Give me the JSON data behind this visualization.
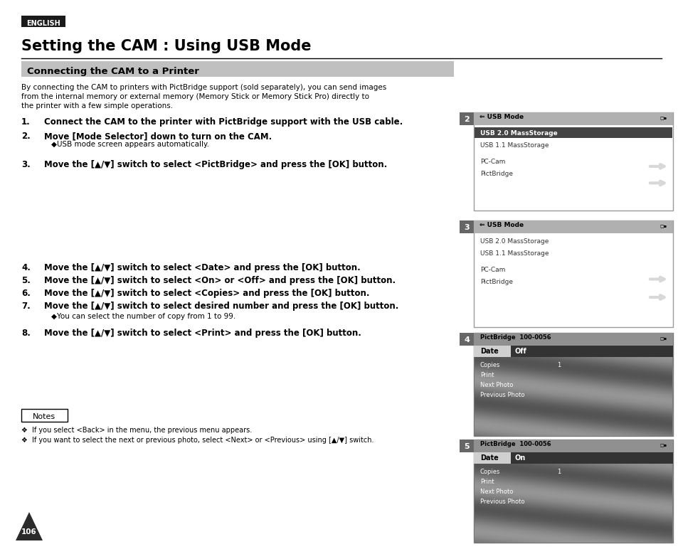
{
  "bg_color": "#ffffff",
  "english_badge": "ENGLISH",
  "main_title": "Setting the CAM : Using USB Mode",
  "section_title": "Connecting the CAM to a Printer",
  "section_bg": "#c0c0c0",
  "intro_text_lines": [
    "By connecting the CAM to printers with PictBridge support (sold separately), you can send images",
    "from the internal memory or external memory (Memory Stick or Memory Stick Pro) directly to",
    "the printer with a few simple operations."
  ],
  "steps": [
    {
      "num": "1.",
      "bold": "Connect the CAM to the printer with PictBridge support with the USB cable."
    },
    {
      "num": "2.",
      "bold": "Move [Mode Selector] down to turn on the CAM.",
      "sub": "◆USB mode screen appears automatically."
    },
    {
      "num": "3.",
      "bold": "Move the [▲/▼] switch to select <PictBridge> and press the [OK] button."
    },
    {
      "num": "4.",
      "bold": "Move the [▲/▼] switch to select <Date> and press the [OK] button."
    },
    {
      "num": "5.",
      "bold": "Move the [▲/▼] switch to select <On> or <Off> and press the [OK] button."
    },
    {
      "num": "6.",
      "bold": "Move the [▲/▼] switch to select <Copies> and press the [OK] button."
    },
    {
      "num": "7.",
      "bold": "Move the [▲/▼] switch to select desired number and press the [OK] button.",
      "sub": "◆You can select the number of copy from 1 to 99."
    },
    {
      "num": "8.",
      "bold": "Move the [▲/▼] switch to select <Print> and press the [OK] button."
    }
  ],
  "notes_title": "Notes",
  "notes": [
    "❖  If you select <Back> in the menu, the previous menu appears.",
    "❖  If you want to select the next or previous photo, select <Next> or <Previous> using [▲/▼] switch."
  ],
  "page_num": "106",
  "usb_screens": [
    {
      "num": "2",
      "title": "⇐ USB Mode",
      "items": [
        "USB 2.0 MassStorage",
        "USB 1.1 MassStorage",
        "",
        "PC-Cam",
        "PictBridge"
      ],
      "selected": 0
    },
    {
      "num": "3",
      "title": "⇐ USB Mode",
      "items": [
        "USB 2.0 MassStorage",
        "USB 1.1 MassStorage",
        "",
        "PC-Cam",
        "PictBridge"
      ],
      "selected": 4
    }
  ],
  "pb_screens": [
    {
      "num": "4",
      "title": "� PictBridge  100-0056",
      "date_val": "Off",
      "items_bg": [
        "Copies",
        "Print",
        "Next Photo",
        "Previous Photo"
      ],
      "copies_val": "1"
    },
    {
      "num": "5",
      "title": "� PictBridge  100-0056",
      "date_val": "On",
      "items_bg": [
        "Copies",
        "Print",
        "Next Photo",
        "Previous Photo"
      ],
      "copies_val": "1"
    }
  ]
}
